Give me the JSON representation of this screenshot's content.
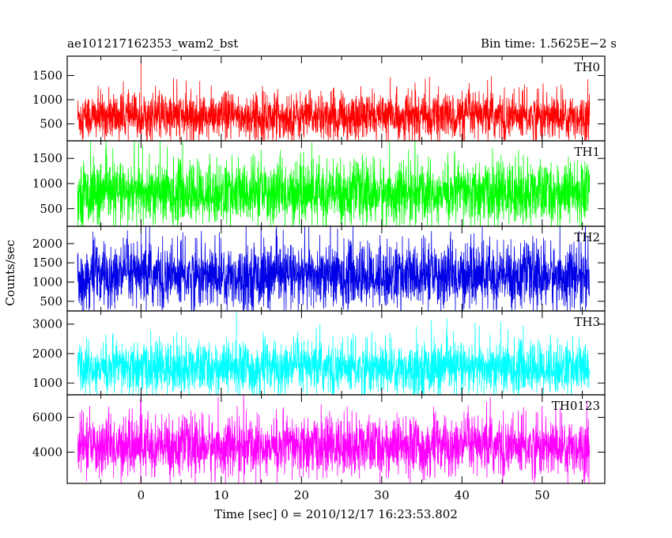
{
  "header": {
    "left_title": "ae101217162353_wam2_bst",
    "right_title": "Bin time: 1.5625E−2 s"
  },
  "axes": {
    "ylabel": "Counts/sec",
    "xlabel": "Time [sec] 0 = 2010/12/17 16:23:53.802"
  },
  "chart_data": [
    {
      "type": "line",
      "label": "TH0",
      "color": "#ff0000",
      "x_range": [
        -8.6,
        56
      ],
      "data_x_range": [
        -7.9,
        55.9
      ],
      "xlim": [
        -9.2,
        57.8
      ],
      "ylim": [
        150,
        1900
      ],
      "yticks": [
        500,
        1000,
        1500
      ],
      "xticks": [
        0,
        10,
        20,
        30,
        40,
        50
      ],
      "xticklabels": [],
      "baseline_mean": 650,
      "typical_band": [
        280,
        1300
      ],
      "peak": {
        "x": 0,
        "y": 1850
      }
    },
    {
      "type": "line",
      "label": "TH1",
      "color": "#00ff00",
      "x_range": [
        -8.6,
        56
      ],
      "data_x_range": [
        -7.9,
        55.9
      ],
      "xlim": [
        -9.2,
        57.8
      ],
      "ylim": [
        150,
        1850
      ],
      "yticks": [
        500,
        1000,
        1500
      ],
      "xticks": [
        0,
        10,
        20,
        30,
        40,
        50
      ],
      "xticklabels": [],
      "baseline_mean": 800,
      "typical_band": [
        300,
        1600
      ],
      "peak": {
        "x": 0.2,
        "y": 1750
      }
    },
    {
      "type": "line",
      "label": "TH2",
      "color": "#0000e6",
      "x_range": [
        -8.6,
        56
      ],
      "data_x_range": [
        -7.9,
        55.9
      ],
      "xlim": [
        -9.2,
        57.8
      ],
      "ylim": [
        250,
        2450
      ],
      "yticks": [
        500,
        1000,
        1500,
        2000
      ],
      "xticks": [
        0,
        10,
        20,
        30,
        40,
        50
      ],
      "xticklabels": [],
      "baseline_mean": 1150,
      "typical_band": [
        450,
        2200
      ],
      "peak": {
        "x": 0,
        "y": 2400
      }
    },
    {
      "type": "line",
      "label": "TH3",
      "color": "#00ffff",
      "x_range": [
        -8.6,
        56
      ],
      "data_x_range": [
        -7.9,
        55.9
      ],
      "xlim": [
        -9.2,
        57.8
      ],
      "ylim": [
        600,
        3450
      ],
      "yticks": [
        1000,
        2000,
        3000
      ],
      "xticks": [
        0,
        10,
        20,
        30,
        40,
        50
      ],
      "xticklabels": [],
      "baseline_mean": 1500,
      "typical_band": [
        950,
        2800
      ],
      "peak": {
        "x": 11.9,
        "y": 3400
      }
    },
    {
      "type": "line",
      "label": "TH0123",
      "color": "#ff00ff",
      "x_range": [
        -8.6,
        56
      ],
      "data_x_range": [
        -7.9,
        55.9
      ],
      "xlim": [
        -9.2,
        57.8
      ],
      "ylim": [
        2200,
        7300
      ],
      "yticks": [
        4000,
        6000
      ],
      "xticks": [
        0,
        10,
        20,
        30,
        40,
        50
      ],
      "xticklabels": [
        "0",
        "10",
        "20",
        "30",
        "40",
        "50"
      ],
      "baseline_mean": 4300,
      "typical_band": [
        2800,
        6300
      ],
      "peak": {
        "x": 0,
        "y": 7200
      }
    }
  ]
}
